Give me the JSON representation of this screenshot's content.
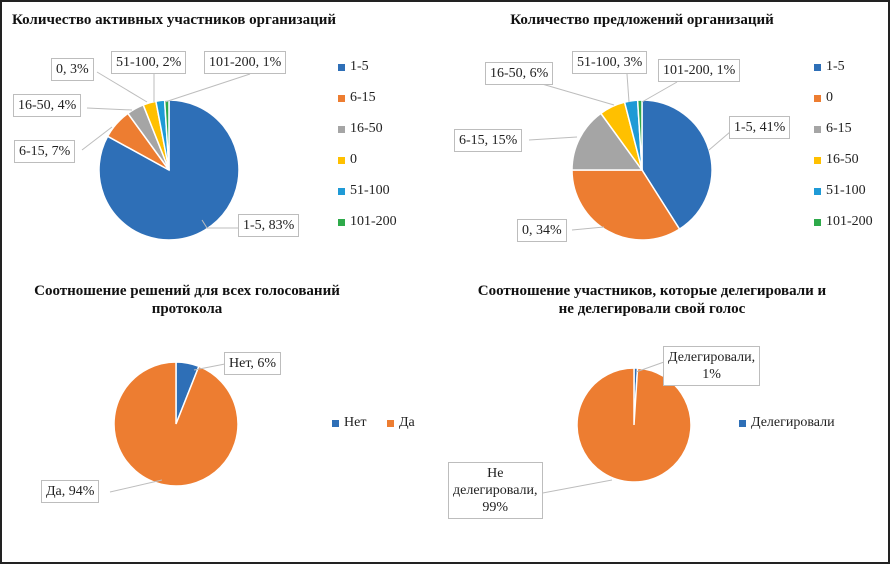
{
  "chart_data": [
    {
      "type": "pie",
      "title": "Количество активных участников организаций",
      "categories": [
        "1-5",
        "6-15",
        "16-50",
        "0",
        "51-100",
        "101-200"
      ],
      "values": [
        83,
        7,
        4,
        3,
        2,
        1
      ],
      "colors": [
        "#2e6fb7",
        "#ed7d31",
        "#a5a5a5",
        "#ffc000",
        "#1f9ad6",
        "#2eaa4a"
      ],
      "data_labels": [
        "1-5, 83%",
        "6-15, 7%",
        "16-50, 4%",
        "0, 3%",
        "51-100, 2%",
        "101-200, 1%"
      ],
      "legend": "right"
    },
    {
      "type": "pie",
      "title": "Количество предложений организаций",
      "categories": [
        "1-5",
        "0",
        "6-15",
        "16-50",
        "51-100",
        "101-200"
      ],
      "values": [
        41,
        34,
        15,
        6,
        3,
        1
      ],
      "colors": [
        "#2e6fb7",
        "#ed7d31",
        "#a5a5a5",
        "#ffc000",
        "#1f9ad6",
        "#2eaa4a"
      ],
      "data_labels": [
        "1-5, 41%",
        "0, 34%",
        "6-15, 15%",
        "16-50, 6%",
        "51-100, 3%",
        "101-200, 1%"
      ],
      "legend": "right"
    },
    {
      "type": "pie",
      "title": "Соотношение решений для всех голосований протокола",
      "title_lines": [
        "Соотношение решений для всех голосований",
        "протокола"
      ],
      "categories": [
        "Нет",
        "Да"
      ],
      "values": [
        6,
        94
      ],
      "colors": [
        "#2e6fb7",
        "#ed7d31"
      ],
      "data_labels": [
        "Нет, 6%",
        "Да, 94%"
      ],
      "legend": "right"
    },
    {
      "type": "pie",
      "title": "Соотношение участников, которые делегировали и не делегировали свой голос",
      "title_lines": [
        "Соотношение участников, которые делегировали и",
        "не делегировали свой голос"
      ],
      "categories": [
        "Делегировали",
        "Не делегировали"
      ],
      "values": [
        1,
        99
      ],
      "colors": [
        "#2e6fb7",
        "#ed7d31"
      ],
      "data_labels": [
        "Делегировали, 1%",
        "Не делегировали, 99%"
      ],
      "label_lines": [
        [
          "Делегировали,",
          "1%"
        ],
        [
          "Не",
          "делегировали,",
          "99%"
        ]
      ],
      "legend_entries": [
        "Делегировали"
      ],
      "legend": "right"
    }
  ]
}
